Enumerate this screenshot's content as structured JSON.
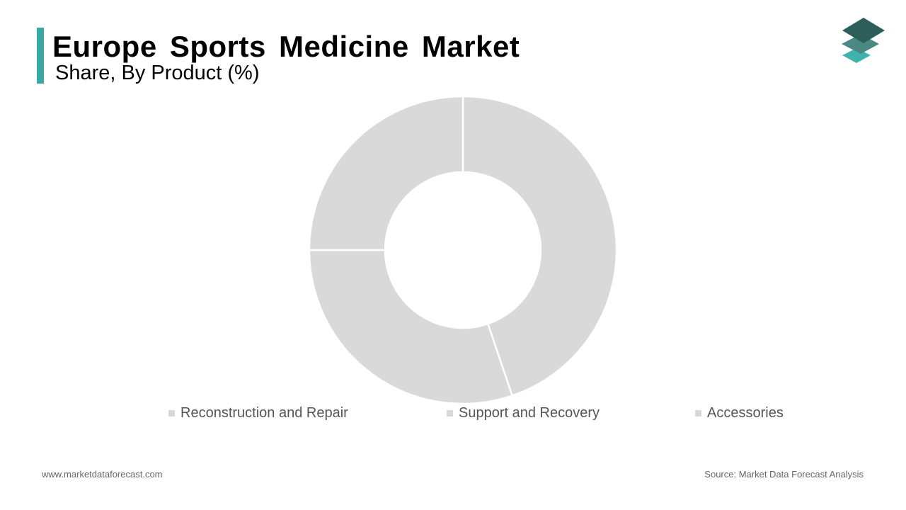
{
  "header": {
    "title": "Europe Sports Medicine Market",
    "subtitle": "Share, By Product (%)"
  },
  "colors": {
    "accent_bar": "#3aa9a3",
    "logo_top": "#2c5e5a",
    "logo_mid": "#4b8783",
    "logo_bottom": "#3fb2ad",
    "slice_fill": "#d9d9d9",
    "slice_stroke": "#ffffff"
  },
  "logo": {
    "icon": "stacked-layers-icon"
  },
  "chart_data": {
    "type": "pie",
    "donut": true,
    "title": "Europe Sports Medicine Market",
    "subtitle": "Share, By Product (%)",
    "categories": [
      "Reconstruction and Repair",
      "Support and Recovery",
      "Accessories"
    ],
    "values": [
      44.8,
      30.2,
      25.0
    ],
    "start": "12 o'clock",
    "direction": "clockwise",
    "legend_position": "bottom"
  },
  "footer": {
    "website": "www.marketdataforecast.com",
    "source": "Source: Market Data Forecast Analysis"
  }
}
